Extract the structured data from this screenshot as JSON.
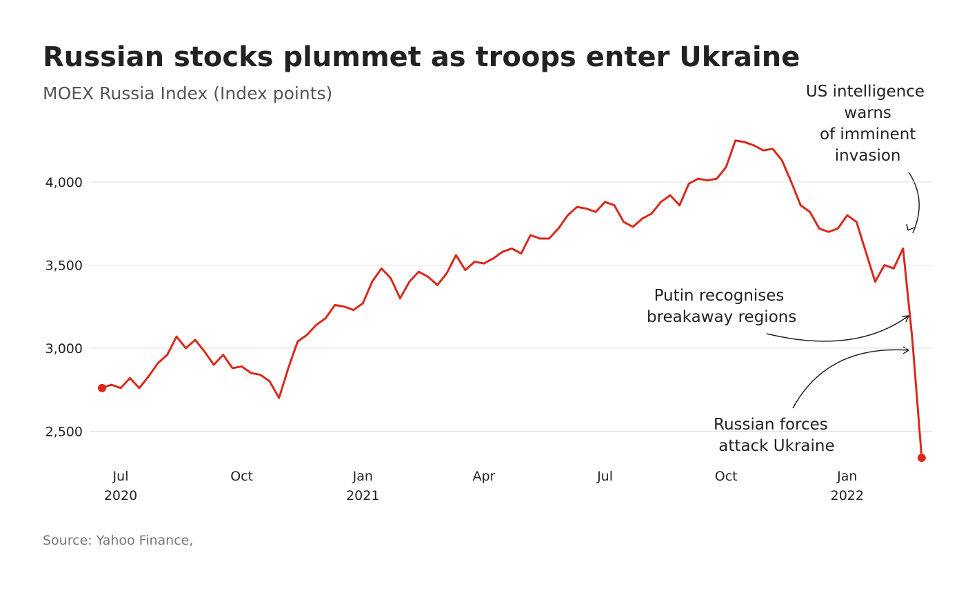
{
  "chart_data": {
    "type": "line",
    "title": "Russian stocks plummet as troops enter Ukraine",
    "subtitle": "MOEX Russia Index (Index points)",
    "source": "Source: Yahoo Finance,",
    "annotations": [
      "US intelligence warns of imminent invasion",
      "Putin recognises breakaway regions",
      "Russian forces attack Ukraine"
    ],
    "categories": [
      null,
      null,
      "Jul 2020",
      null,
      null,
      null,
      null,
      null,
      null,
      null,
      null,
      null,
      null,
      null,
      null,
      "Oct",
      null,
      null,
      null,
      null,
      null,
      null,
      null,
      null,
      null,
      null,
      null,
      null,
      "Jan 2021",
      null,
      null,
      null,
      null,
      null,
      null,
      null,
      null,
      null,
      null,
      null,
      null,
      "Apr",
      null,
      null,
      null,
      null,
      null,
      null,
      null,
      null,
      null,
      null,
      null,
      null,
      "Jul",
      null,
      null,
      null,
      null,
      null,
      null,
      null,
      null,
      null,
      null,
      null,
      null,
      "Oct",
      null,
      null,
      null,
      null,
      null,
      null,
      null,
      null,
      null,
      null,
      null,
      null,
      "Jan 2022",
      null,
      null,
      null,
      null,
      null,
      null,
      null,
      null
    ],
    "series": [
      {
        "name": "MOEX Russia Index",
        "color": "#d9291c",
        "values": [
          2760,
          2780,
          2760,
          2820,
          2760,
          2830,
          2910,
          2960,
          3070,
          3000,
          3050,
          2980,
          2900,
          2960,
          2880,
          2890,
          2850,
          2840,
          2800,
          2700,
          2880,
          3040,
          3080,
          3140,
          3180,
          3260,
          3250,
          3230,
          3270,
          3400,
          3480,
          3420,
          3300,
          3400,
          3460,
          3430,
          3380,
          3450,
          3560,
          3470,
          3520,
          3510,
          3540,
          3580,
          3600,
          3570,
          3680,
          3660,
          3660,
          3720,
          3800,
          3850,
          3840,
          3820,
          3880,
          3860,
          3760,
          3730,
          3780,
          3810,
          3880,
          3920,
          3860,
          3990,
          4020,
          4010,
          4020,
          4090,
          4250,
          4240,
          4220,
          4190,
          4200,
          4130,
          4000,
          3860,
          3820,
          3720,
          3700,
          3720,
          3800,
          3760,
          3580,
          3400,
          3500,
          3480,
          3600,
          3050,
          2340
        ]
      }
    ],
    "ylim": [
      2300,
      4400
    ],
    "yticks": [
      {
        "value": 2500,
        "label": "2,500"
      },
      {
        "value": 3000,
        "label": "3,000"
      },
      {
        "value": 3500,
        "label": "3,500"
      },
      {
        "value": 4000,
        "label": "4,000"
      }
    ],
    "grid": true
  }
}
